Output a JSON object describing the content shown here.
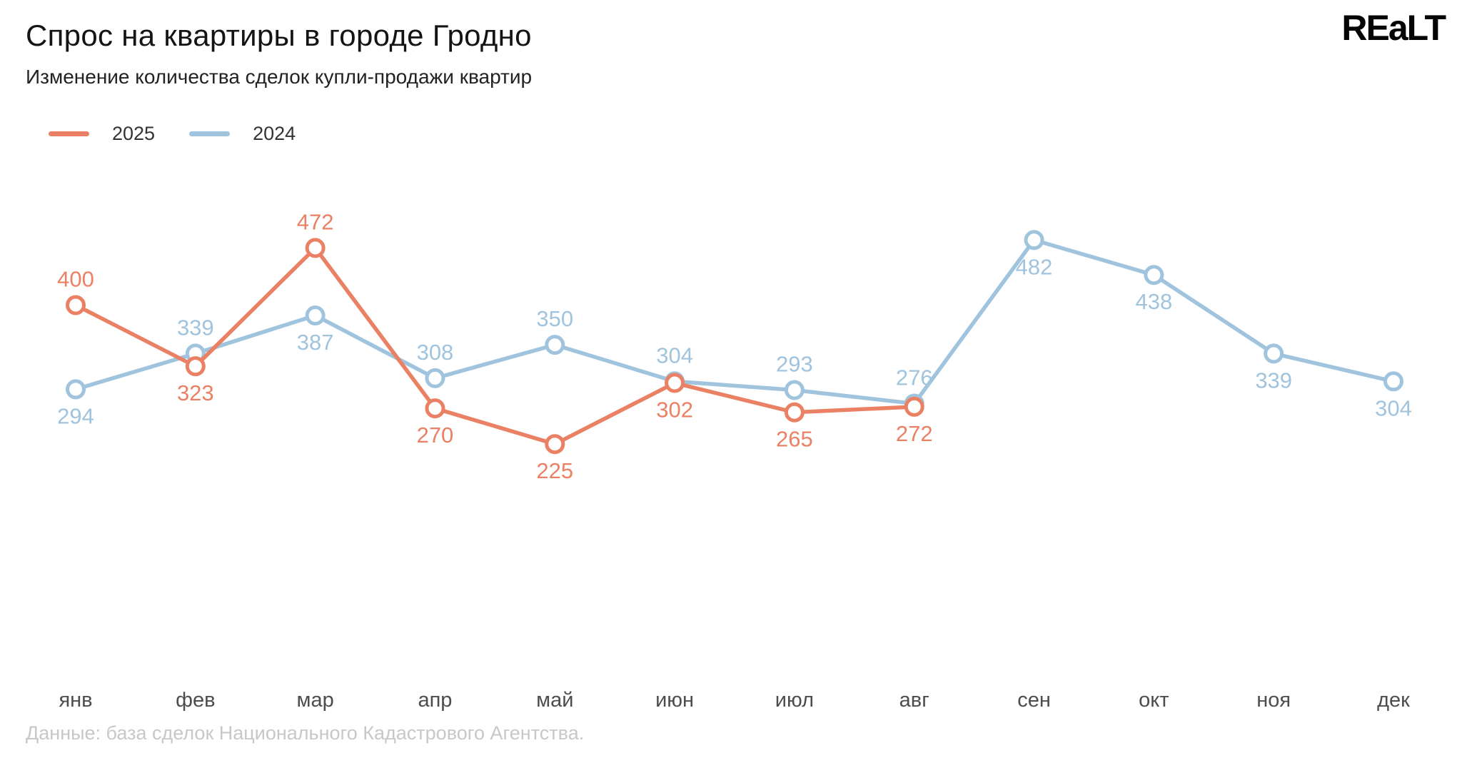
{
  "header": {
    "title": "Спрос на квартиры в городе Гродно",
    "subtitle": "Изменение количества сделок купли-продажи квартир",
    "logo_text": "REaLT"
  },
  "legend": [
    {
      "label": "2025",
      "color": "#EA8164"
    },
    {
      "label": "2024",
      "color": "#A1C4DE"
    }
  ],
  "footer": {
    "source_note": "Данные: база сделок Национального Кадастрового Агентства."
  },
  "chart_data": {
    "type": "line",
    "title": "Спрос на квартиры в городе Гродно",
    "subtitle": "Изменение количества сделок купли-продажи квартир",
    "categories": [
      "янв",
      "фев",
      "мар",
      "апр",
      "май",
      "июн",
      "июл",
      "авг",
      "сен",
      "окт",
      "ноя",
      "дек"
    ],
    "series": [
      {
        "name": "2025",
        "color": "#EA8164",
        "values": [
          400,
          323,
          472,
          270,
          225,
          302,
          265,
          272,
          null,
          null,
          null,
          null
        ],
        "label_positions": [
          "above",
          "below",
          "above",
          "below",
          "below",
          "below",
          "below",
          "below",
          null,
          null,
          null,
          null
        ]
      },
      {
        "name": "2024",
        "color": "#A1C4DE",
        "values": [
          294,
          339,
          387,
          308,
          350,
          304,
          293,
          276,
          482,
          438,
          339,
          304
        ],
        "label_positions": [
          "below",
          "above",
          "below",
          "above",
          "above",
          "above",
          "above",
          "above",
          "below",
          "below",
          "below",
          "below"
        ]
      }
    ],
    "xlabel": "",
    "ylabel": "",
    "ylim": [
      200,
      520
    ],
    "grid": false,
    "axes_visible": false,
    "point_labels": true,
    "legend_position": "top-left"
  }
}
